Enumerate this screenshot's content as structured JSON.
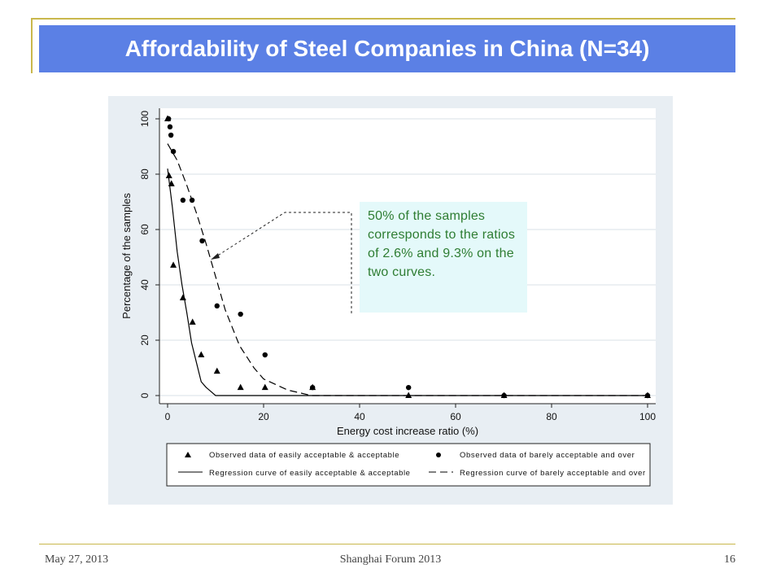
{
  "slide": {
    "title": "Affordability of Steel Companies in China (N=34)",
    "callout": "50% of the samples corresponds to the ratios of 2.6% and 9.3% on the two curves.",
    "footer_date": "May 27, 2013",
    "footer_event": "Shanghai Forum 2013",
    "footer_page": "16"
  },
  "colors": {
    "title_bar": "#5b80e5",
    "accent_line": "#c9b84c",
    "plot_region": "#e8eef3",
    "callout_bg": "#e4f9fa",
    "callout_text": "#2e7d32"
  },
  "chart_data": {
    "type": "scatter",
    "xlabel": "Energy cost increase ratio (%)",
    "ylabel": "Percentage of the samples",
    "xlim": [
      0,
      100
    ],
    "ylim": [
      0,
      100
    ],
    "xticks": [
      0,
      20,
      40,
      60,
      80,
      100
    ],
    "yticks": [
      0,
      20,
      40,
      60,
      80,
      100
    ],
    "grid": true,
    "legend_position": "bottom",
    "series": [
      {
        "name": "Observed data of easily acceptable & acceptable",
        "kind": "points",
        "marker": "triangle",
        "x": [
          0,
          0.3,
          0.8,
          1.2,
          3.2,
          5.2,
          7.0,
          10.3,
          15.2,
          20.3,
          30.2,
          50.2,
          70.1,
          100
        ],
        "y": [
          100,
          79.4,
          76.5,
          47.1,
          35.3,
          26.5,
          14.7,
          8.8,
          2.9,
          2.9,
          2.9,
          0,
          0,
          0
        ]
      },
      {
        "name": "Observed data of barely acceptable and over",
        "kind": "points",
        "marker": "circle",
        "x": [
          0.2,
          0.5,
          0.7,
          1.2,
          3.2,
          5.1,
          7.2,
          10.3,
          15.2,
          20.3,
          30.2,
          50.2,
          70.1,
          100
        ],
        "y": [
          100,
          97.1,
          94.1,
          88.2,
          70.6,
          70.6,
          55.9,
          32.4,
          29.4,
          14.7,
          2.9,
          2.9,
          0,
          0
        ]
      },
      {
        "name": "Regression curve of easily acceptable & acceptable",
        "kind": "line",
        "dash": "solid",
        "x": [
          0,
          1,
          2,
          3,
          4,
          5,
          6,
          7,
          8,
          10,
          15,
          20,
          30,
          50,
          70,
          100
        ],
        "y": [
          82,
          68,
          52,
          40,
          30,
          19,
          12,
          5,
          3,
          0,
          0,
          0,
          0,
          0,
          0,
          0
        ]
      },
      {
        "name": "Regression curve of barely acceptable and over",
        "kind": "line",
        "dash": "dash",
        "x": [
          0,
          2,
          4,
          6,
          8,
          10,
          12,
          15,
          18,
          20,
          25,
          30,
          50,
          70,
          100
        ],
        "y": [
          91,
          85,
          76,
          66,
          55,
          43,
          31,
          18,
          10,
          6,
          2,
          0,
          0,
          0,
          0
        ]
      }
    ]
  }
}
